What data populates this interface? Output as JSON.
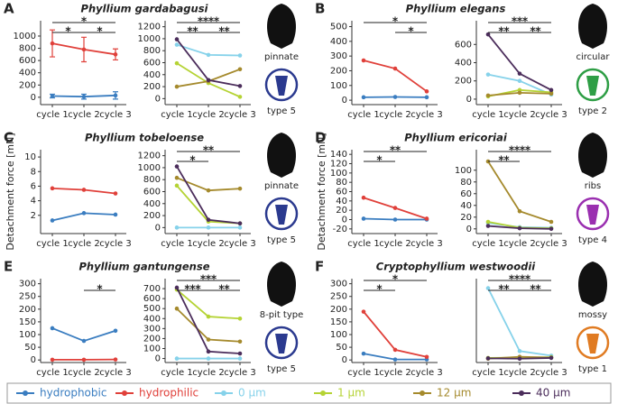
{
  "panels": [
    {
      "letter": "A",
      "title": "Phyllium gardabagusi",
      "shape": "pinnate",
      "type": "type 5",
      "icon_color": "#2b3a8f"
    },
    {
      "letter": "B",
      "title": "Phyllium elegans",
      "shape": "circular",
      "type": "type 2",
      "icon_color": "#2e9e45"
    },
    {
      "letter": "C",
      "title": "Phyllium tobeloense",
      "shape": "pinnate",
      "type": "type 5",
      "icon_color": "#2b3a8f"
    },
    {
      "letter": "D",
      "title": "Phyllium ericoriai",
      "shape": "ribs",
      "type": "type 4",
      "icon_color": "#9a2fb0"
    },
    {
      "letter": "E",
      "title": "Phyllium gantungense",
      "shape": "8-pit type",
      "type": "type 5",
      "icon_color": "#2b3a8f"
    },
    {
      "letter": "F",
      "title": "Cryptophyllium westwoodii",
      "shape": "mossy",
      "type": "type 1",
      "icon_color": "#e07b22"
    }
  ],
  "chart_data": [
    {
      "type": "line",
      "categories": [
        "cycle 1",
        "cycle 2",
        "cycle 3"
      ],
      "ylim": [
        -120,
        1250
      ],
      "yticks": [
        0,
        200,
        400,
        600,
        800,
        1000
      ],
      "series": [
        {
          "name": "hydrophobic",
          "color": "#3a7dc0",
          "values": [
            20,
            10,
            30
          ],
          "errors": [
            30,
            40,
            60
          ]
        },
        {
          "name": "hydrophilic",
          "color": "#e0403a",
          "values": [
            880,
            780,
            700
          ],
          "errors": [
            220,
            200,
            90
          ]
        }
      ],
      "brackets": [
        {
          "from": "cycle 1",
          "to": "cycle 3",
          "stars": [
            {
              "text": "*",
              "color": "#e0403a"
            }
          ]
        },
        {
          "from": "cycle 1",
          "to": "cycle 2",
          "stars": [
            {
              "text": "*",
              "color": "#3a7dc0"
            }
          ]
        },
        {
          "from": "cycle 2",
          "to": "cycle 3",
          "stars": [
            {
              "text": "*",
              "color": "#3a7dc0"
            }
          ]
        }
      ]
    },
    {
      "type": "line",
      "categories": [
        "cycle 1",
        "cycle 2",
        "cycle 3"
      ],
      "ylim": [
        -100,
        1300
      ],
      "yticks": [
        0,
        200,
        400,
        600,
        800,
        1000,
        1200
      ],
      "series": [
        {
          "name": "0 µm",
          "color": "#86d2ea",
          "values": [
            900,
            730,
            720
          ]
        },
        {
          "name": "1 µm",
          "color": "#b5d334",
          "values": [
            590,
            260,
            30
          ]
        },
        {
          "name": "12 µm",
          "color": "#a58a2d",
          "values": [
            200,
            290,
            490
          ]
        },
        {
          "name": "40 µm",
          "color": "#4b2d5b",
          "values": [
            990,
            310,
            210
          ]
        }
      ],
      "brackets": [
        {
          "from": "cycle 1",
          "to": "cycle 3",
          "stars": [
            {
              "text": "*",
              "color": "#4b2d5b"
            },
            {
              "text": "*",
              "color": "#a58a2d"
            },
            {
              "text": "*",
              "color": "#b5d334"
            },
            {
              "text": "*",
              "color": "#86d2ea"
            }
          ]
        },
        {
          "from": "cycle 1",
          "to": "cycle 2",
          "stars": [
            {
              "text": "*",
              "color": "#a58a2d"
            },
            {
              "text": "*",
              "color": "#b5d334"
            }
          ]
        },
        {
          "from": "cycle 2",
          "to": "cycle 3",
          "stars": [
            {
              "text": "*",
              "color": "#a58a2d"
            },
            {
              "text": "*",
              "color": "#b5d334"
            }
          ]
        }
      ]
    },
    {
      "type": "line",
      "categories": [
        "cycle 1",
        "cycle 2",
        "cycle 3"
      ],
      "ylim": [
        -30,
        540
      ],
      "yticks": [
        0,
        100,
        200,
        300,
        400,
        500
      ],
      "series": [
        {
          "name": "hydrophobic",
          "color": "#3a7dc0",
          "values": [
            20,
            22,
            20
          ]
        },
        {
          "name": "hydrophilic",
          "color": "#e0403a",
          "values": [
            270,
            215,
            60
          ]
        }
      ],
      "brackets": [
        {
          "from": "cycle 1",
          "to": "cycle 3",
          "stars": [
            {
              "text": "*",
              "color": "#e0403a"
            }
          ]
        },
        {
          "from": "cycle 2",
          "to": "cycle 3",
          "stars": [
            {
              "text": "*",
              "color": "#e0403a"
            }
          ]
        }
      ]
    },
    {
      "type": "line",
      "categories": [
        "cycle 1",
        "cycle 2",
        "cycle 3"
      ],
      "ylim": [
        -60,
        860
      ],
      "yticks": [
        0,
        200,
        400,
        600
      ],
      "series": [
        {
          "name": "0 µm",
          "color": "#86d2ea",
          "values": [
            270,
            200,
            50
          ]
        },
        {
          "name": "1 µm",
          "color": "#b5d334",
          "values": [
            30,
            100,
            75
          ]
        },
        {
          "name": "12 µm",
          "color": "#a58a2d",
          "values": [
            40,
            70,
            60
          ]
        },
        {
          "name": "40 µm",
          "color": "#4b2d5b",
          "values": [
            710,
            280,
            100
          ]
        }
      ],
      "brackets": [
        {
          "from": "cycle 1",
          "to": "cycle 3",
          "stars": [
            {
              "text": "*",
              "color": "#86d2ea"
            },
            {
              "text": "*",
              "color": "#b5d334"
            },
            {
              "text": "*",
              "color": "#4b2d5b"
            }
          ]
        },
        {
          "from": "cycle 1",
          "to": "cycle 2",
          "stars": [
            {
              "text": "*",
              "color": "#a58a2d"
            },
            {
              "text": "*",
              "color": "#4b2d5b"
            }
          ]
        },
        {
          "from": "cycle 2",
          "to": "cycle 3",
          "stars": [
            {
              "text": "*",
              "color": "#86d2ea"
            },
            {
              "text": "*",
              "color": "#4b2d5b"
            }
          ]
        }
      ]
    },
    {
      "type": "line",
      "categories": [
        "cycle 1",
        "cycle 2",
        "cycle 3"
      ],
      "ylim": [
        -0.5,
        11
      ],
      "yticks": [
        2,
        4,
        6,
        8,
        10
      ],
      "ylabel": "Detachment force [mN]",
      "series": [
        {
          "name": "hydrophobic",
          "color": "#3a7dc0",
          "values": [
            1.3,
            2.3,
            2.1
          ]
        },
        {
          "name": "hydrophilic",
          "color": "#e0403a",
          "values": [
            5.7,
            5.5,
            5.0
          ]
        }
      ],
      "brackets": []
    },
    {
      "type": "line",
      "categories": [
        "cycle 1",
        "cycle 2",
        "cycle 3"
      ],
      "ylim": [
        -100,
        1300
      ],
      "yticks": [
        0,
        200,
        400,
        600,
        800,
        1000,
        1200
      ],
      "series": [
        {
          "name": "0 µm",
          "color": "#86d2ea",
          "values": [
            0,
            0,
            0
          ]
        },
        {
          "name": "1 µm",
          "color": "#b5d334",
          "values": [
            700,
            100,
            70
          ]
        },
        {
          "name": "12 µm",
          "color": "#a58a2d",
          "values": [
            830,
            620,
            650
          ]
        },
        {
          "name": "40 µm",
          "color": "#4b2d5b",
          "values": [
            1020,
            130,
            70
          ]
        }
      ],
      "brackets": [
        {
          "from": "cycle 1",
          "to": "cycle 3",
          "stars": [
            {
              "text": "*",
              "color": "#b5d334"
            },
            {
              "text": "*",
              "color": "#4b2d5b"
            }
          ]
        },
        {
          "from": "cycle 1",
          "to": "cycle 2",
          "stars": [
            {
              "text": "*",
              "color": "#86d2ea"
            }
          ]
        }
      ]
    },
    {
      "type": "line",
      "categories": [
        "cycle 1",
        "cycle 2",
        "cycle 3"
      ],
      "ylim": [
        -30,
        150
      ],
      "yticks": [
        -20,
        0,
        20,
        40,
        60,
        80,
        100,
        120,
        140
      ],
      "ylabel": "Detachment force [mN]",
      "series": [
        {
          "name": "hydrophobic",
          "color": "#3a7dc0",
          "values": [
            2,
            0,
            0
          ]
        },
        {
          "name": "hydrophilic",
          "color": "#e0403a",
          "values": [
            47,
            25,
            2
          ]
        }
      ],
      "brackets": [
        {
          "from": "cycle 1",
          "to": "cycle 3",
          "stars": [
            {
              "text": "*",
              "color": "#3a7dc0"
            },
            {
              "text": "*",
              "color": "#e0403a"
            }
          ]
        },
        {
          "from": "cycle 1",
          "to": "cycle 2",
          "stars": [
            {
              "text": "*",
              "color": "#3a7dc0"
            }
          ]
        }
      ]
    },
    {
      "type": "line",
      "categories": [
        "cycle 1",
        "cycle 2",
        "cycle 3"
      ],
      "ylim": [
        -8,
        135
      ],
      "yticks": [
        0,
        20,
        40,
        60,
        80,
        100
      ],
      "series": [
        {
          "name": "0 µm",
          "color": "#86d2ea",
          "values": [
            10,
            3,
            2
          ]
        },
        {
          "name": "1 µm",
          "color": "#b5d334",
          "values": [
            12,
            2,
            1
          ]
        },
        {
          "name": "12 µm",
          "color": "#a58a2d",
          "values": [
            115,
            30,
            12
          ]
        },
        {
          "name": "40 µm",
          "color": "#4b2d5b",
          "values": [
            5,
            1,
            0
          ]
        }
      ],
      "brackets": [
        {
          "from": "cycle 1",
          "to": "cycle 3",
          "stars": [
            {
              "text": "*",
              "color": "#4b2d5b"
            },
            {
              "text": "*",
              "color": "#a58a2d"
            },
            {
              "text": "*",
              "color": "#b5d334"
            },
            {
              "text": "*",
              "color": "#86d2ea"
            }
          ]
        },
        {
          "from": "cycle 1",
          "to": "cycle 2",
          "stars": [
            {
              "text": "*",
              "color": "#a58a2d"
            },
            {
              "text": "*",
              "color": "#b5d334"
            }
          ]
        }
      ]
    },
    {
      "type": "line",
      "categories": [
        "cycle 1",
        "cycle 2",
        "cycle 3"
      ],
      "ylim": [
        -10,
        320
      ],
      "yticks": [
        0,
        50,
        100,
        150,
        200,
        250,
        300
      ],
      "series": [
        {
          "name": "hydrophobic",
          "color": "#3a7dc0",
          "values": [
            125,
            75,
            115
          ]
        },
        {
          "name": "hydrophilic",
          "color": "#e0403a",
          "values": [
            1,
            1,
            2
          ]
        }
      ],
      "brackets": [
        {
          "from": "cycle 2",
          "to": "cycle 3",
          "stars": [
            {
              "text": "*",
              "color": "#e0403a"
            }
          ]
        }
      ]
    },
    {
      "type": "line",
      "categories": [
        "cycle 1",
        "cycle 2",
        "cycle 3"
      ],
      "ylim": [
        -40,
        800
      ],
      "yticks": [
        0,
        100,
        200,
        300,
        400,
        500,
        600,
        700
      ],
      "series": [
        {
          "name": "0 µm",
          "color": "#86d2ea",
          "values": [
            0,
            0,
            0
          ]
        },
        {
          "name": "1 µm",
          "color": "#b5d334",
          "values": [
            690,
            420,
            400
          ]
        },
        {
          "name": "12 µm",
          "color": "#a58a2d",
          "values": [
            500,
            190,
            170
          ]
        },
        {
          "name": "40 µm",
          "color": "#4b2d5b",
          "values": [
            710,
            70,
            50
          ]
        }
      ],
      "brackets": [
        {
          "from": "cycle 1",
          "to": "cycle 3",
          "stars": [
            {
              "text": "*",
              "color": "#b5d334"
            },
            {
              "text": "*",
              "color": "#a58a2d"
            },
            {
              "text": "*",
              "color": "#4b2d5b"
            }
          ]
        },
        {
          "from": "cycle 1",
          "to": "cycle 2",
          "stars": [
            {
              "text": "*",
              "color": "#b5d334"
            },
            {
              "text": "*",
              "color": "#a58a2d"
            },
            {
              "text": "*",
              "color": "#4b2d5b"
            }
          ]
        },
        {
          "from": "cycle 2",
          "to": "cycle 3",
          "stars": [
            {
              "text": "*",
              "color": "#a58a2d"
            },
            {
              "text": "*",
              "color": "#4b2d5b"
            }
          ]
        }
      ]
    },
    {
      "type": "line",
      "categories": [
        "cycle 1",
        "cycle 2",
        "cycle 3"
      ],
      "ylim": [
        -10,
        320
      ],
      "yticks": [
        0,
        50,
        100,
        150,
        200,
        250,
        300
      ],
      "series": [
        {
          "name": "hydrophobic",
          "color": "#3a7dc0",
          "values": [
            25,
            2,
            2
          ]
        },
        {
          "name": "hydrophilic",
          "color": "#e0403a",
          "values": [
            190,
            40,
            12
          ]
        }
      ],
      "brackets": [
        {
          "from": "cycle 1",
          "to": "cycle 3",
          "stars": [
            {
              "text": "*",
              "color": "#e0403a"
            }
          ]
        },
        {
          "from": "cycle 1",
          "to": "cycle 2",
          "stars": [
            {
              "text": "*",
              "color": "#e0403a"
            }
          ]
        }
      ]
    },
    {
      "type": "line",
      "categories": [
        "cycle 1",
        "cycle 2",
        "cycle 3"
      ],
      "ylim": [
        -10,
        210
      ],
      "series": [
        {
          "name": "0 µm",
          "color": "#86d2ea",
          "values": [
            185,
            20,
            8
          ]
        },
        {
          "name": "1 µm",
          "color": "#b5d334",
          "values": [
            2,
            3,
            4
          ]
        },
        {
          "name": "12 µm",
          "color": "#a58a2d",
          "values": [
            0,
            5,
            3
          ]
        },
        {
          "name": "40 µm",
          "color": "#4b2d5b",
          "values": [
            1,
            0,
            2
          ]
        }
      ],
      "brackets": [
        {
          "from": "cycle 1",
          "to": "cycle 3",
          "stars": [
            {
              "text": "*",
              "color": "#86d2ea"
            },
            {
              "text": "*",
              "color": "#b5d334"
            },
            {
              "text": "*",
              "color": "#a58a2d"
            },
            {
              "text": "*",
              "color": "#4b2d5b"
            }
          ]
        },
        {
          "from": "cycle 1",
          "to": "cycle 2",
          "stars": [
            {
              "text": "*",
              "color": "#86d2ea"
            },
            {
              "text": "*",
              "color": "#a58a2d"
            }
          ]
        },
        {
          "from": "cycle 2",
          "to": "cycle 3",
          "stars": [
            {
              "text": "*",
              "color": "#b5d334"
            },
            {
              "text": "*",
              "color": "#4b2d5b"
            }
          ]
        }
      ]
    }
  ]
}
